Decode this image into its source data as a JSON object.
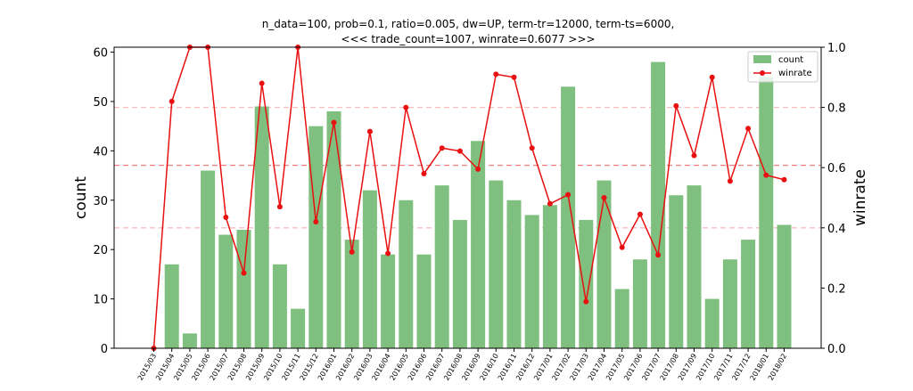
{
  "chart_data": {
    "type": "bar+line",
    "title_lines": [
      "n_data=100, prob=0.1, ratio=0.005, dw=UP, term-tr=12000, term-ts=6000,",
      "<<< trade_count=1007, winrate=0.6077 >>>"
    ],
    "ylabel_left": "count",
    "ylabel_right": "winrate",
    "ylim_left": [
      0,
      61
    ],
    "ylim_right": [
      0,
      1.0
    ],
    "yticks_left": [
      "0",
      "10",
      "20",
      "30",
      "40",
      "50",
      "60"
    ],
    "yticks_right": [
      "0.0",
      "0.2",
      "0.4",
      "0.6",
      "0.8",
      "1.0"
    ],
    "categories": [
      "2015/03",
      "2015/04",
      "2015/05",
      "2015/06",
      "2015/07",
      "2015/08",
      "2015/09",
      "2015/10",
      "2015/11",
      "2015/12",
      "2016/01",
      "2016/02",
      "2016/03",
      "2016/04",
      "2016/05",
      "2016/06",
      "2016/07",
      "2016/08",
      "2016/09",
      "2016/10",
      "2016/11",
      "2016/12",
      "2017/01",
      "2017/02",
      "2017/03",
      "2017/04",
      "2017/05",
      "2017/06",
      "2017/07",
      "2017/08",
      "2017/09",
      "2017/10",
      "2017/11",
      "2017/12",
      "2018/01",
      "2018/02"
    ],
    "series": [
      {
        "name": "count",
        "kind": "bar",
        "color": "#7fbf7f",
        "values": [
          0,
          17,
          3,
          36,
          23,
          24,
          49,
          17,
          8,
          45,
          48,
          22,
          32,
          19,
          30,
          19,
          33,
          26,
          42,
          34,
          30,
          27,
          29,
          53,
          26,
          34,
          12,
          18,
          58,
          31,
          33,
          10,
          18,
          22,
          55,
          25
        ]
      },
      {
        "name": "winrate",
        "kind": "line",
        "color": "#e81010",
        "values": [
          0.0,
          0.82,
          1.0,
          1.0,
          0.435,
          0.25,
          0.88,
          0.47,
          1.0,
          0.42,
          0.75,
          0.32,
          0.72,
          0.315,
          0.8,
          0.58,
          0.665,
          0.655,
          0.595,
          0.91,
          0.9,
          0.665,
          0.48,
          0.51,
          0.155,
          0.5,
          0.335,
          0.445,
          0.31,
          0.805,
          0.64,
          0.9,
          0.555,
          0.73,
          0.575,
          0.56
        ]
      }
    ],
    "reference_lines_right": [
      {
        "value": 0.6077,
        "style": "dashed",
        "color": "#f08080"
      },
      {
        "value": 0.4,
        "style": "dashed",
        "color": "#f8c0c0"
      },
      {
        "value": 0.8,
        "style": "dashed",
        "color": "#f8c0c0"
      }
    ],
    "legend": {
      "position": "top-right",
      "entries": [
        "count",
        "winrate"
      ]
    },
    "grid": false
  }
}
